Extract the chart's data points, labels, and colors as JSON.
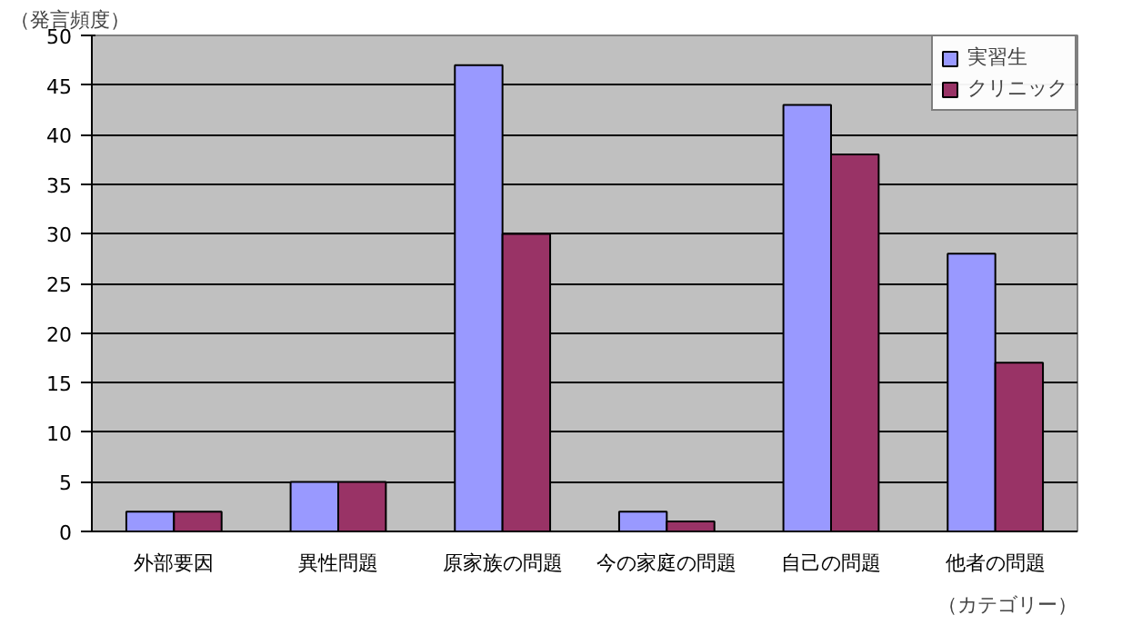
{
  "chart_data": {
    "type": "bar",
    "xlabel": "（カテゴリー）",
    "ylabel": "（発言頻度）",
    "categories": [
      "外部要因",
      "異性問題",
      "原家族の問題",
      "今の家庭の問題",
      "自己の問題",
      "他者の問題"
    ],
    "series": [
      {
        "name": "実習生",
        "color": "#9999ff",
        "values": [
          2,
          5,
          47,
          2,
          43,
          28
        ]
      },
      {
        "name": "クリニック",
        "color": "#993366",
        "values": [
          2,
          5,
          30,
          1,
          38,
          17
        ]
      }
    ],
    "ylim": [
      0,
      50
    ],
    "yticks": [
      0,
      5,
      10,
      15,
      20,
      25,
      30,
      35,
      40,
      45,
      50
    ],
    "grid": "y",
    "legend": "top right"
  }
}
